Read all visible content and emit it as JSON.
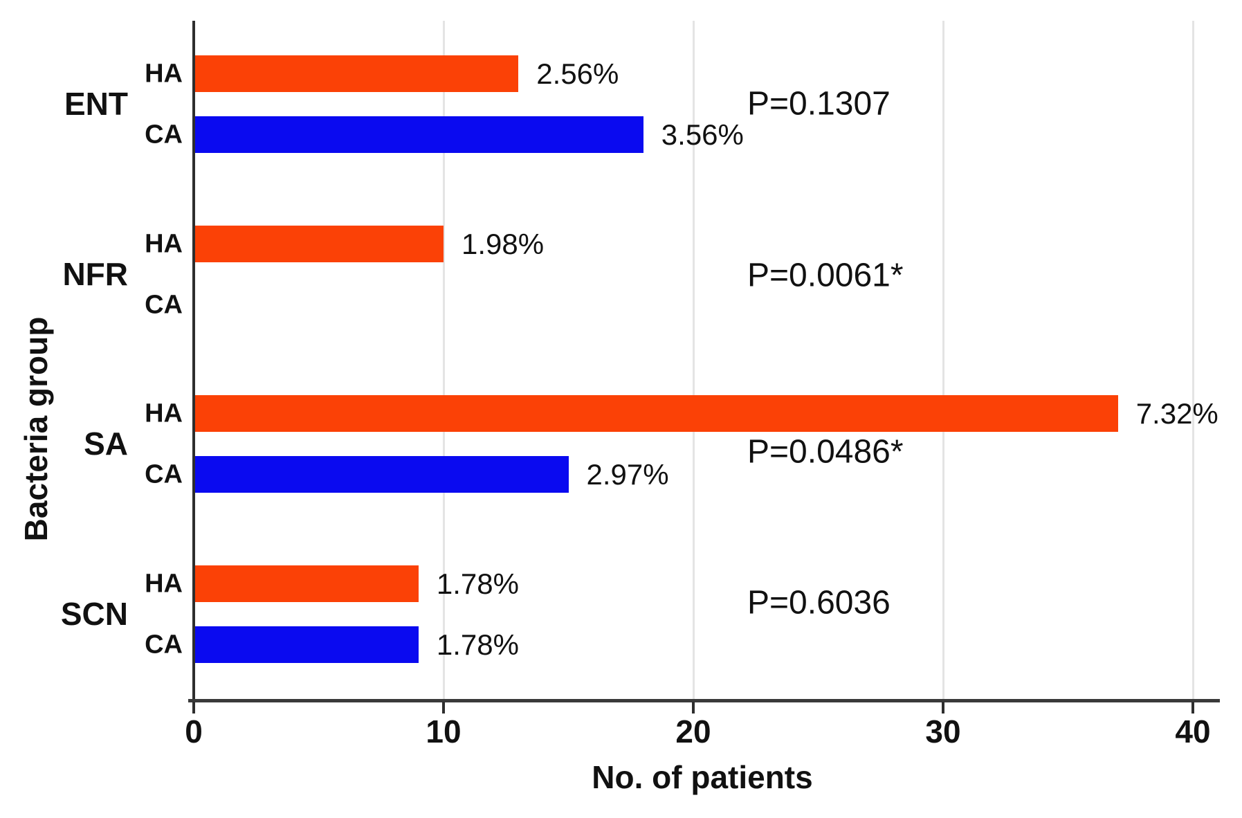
{
  "figure": {
    "background": "#ffffff",
    "text_color": "#141414",
    "axis_color": "#2e2e2e",
    "gridline_color": "#e4e4e4"
  },
  "chart_data": {
    "type": "bar",
    "orientation": "horizontal",
    "xlabel": "No. of patients",
    "ylabel": "Bacteria group",
    "xlim": [
      0,
      40
    ],
    "xticks": [
      "0",
      "10",
      "20",
      "30",
      "40"
    ],
    "grid": "vertical gridlines at 10, 20, 30, 40",
    "legend_position": "none",
    "series_names": [
      "HA",
      "CA"
    ],
    "colors": {
      "HA": "#FB4106",
      "CA": "#0A0AF0"
    },
    "groups": [
      {
        "name": "ENT",
        "p_label": "P=0.1307",
        "bars": [
          {
            "series": "HA",
            "value": 13,
            "label": "2.56%"
          },
          {
            "series": "CA",
            "value": 18,
            "label": "3.56%"
          }
        ]
      },
      {
        "name": "NFR",
        "p_label": "P=0.0061*",
        "bars": [
          {
            "series": "HA",
            "value": 10,
            "label": "1.98%"
          },
          {
            "series": "CA",
            "value": 0,
            "label": ""
          }
        ]
      },
      {
        "name": "SA",
        "p_label": "P=0.0486*",
        "bars": [
          {
            "series": "HA",
            "value": 37,
            "label": "7.32%"
          },
          {
            "series": "CA",
            "value": 15,
            "label": "2.97%"
          }
        ]
      },
      {
        "name": "SCN",
        "p_label": "P=0.6036",
        "bars": [
          {
            "series": "HA",
            "value": 9,
            "label": "1.78%"
          },
          {
            "series": "CA",
            "value": 9,
            "label": "1.78%"
          }
        ]
      }
    ]
  }
}
